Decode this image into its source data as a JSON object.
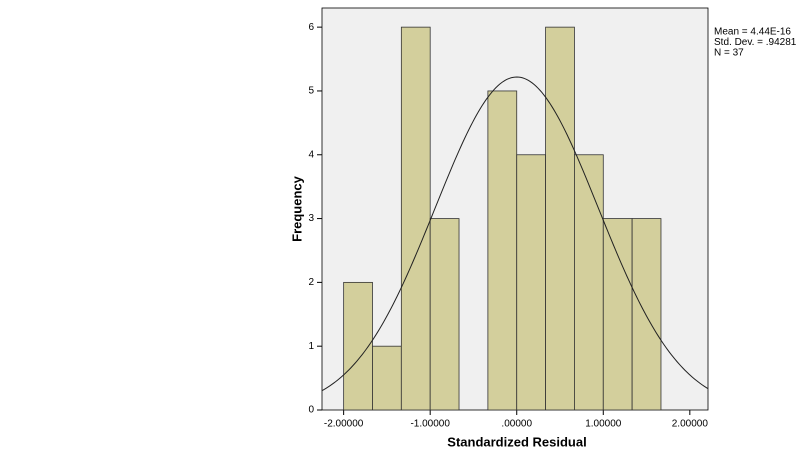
{
  "chart_data": {
    "type": "histogram",
    "x_label": "Standardized Residual",
    "y_label": "Frequency",
    "bins": [
      -2,
      -1.66667,
      -1.33333,
      -1,
      -0.66667,
      -0.33333,
      0,
      0.33333,
      0.66667,
      1,
      1.33333,
      1.66667
    ],
    "values": [
      2,
      1,
      6,
      3,
      0,
      5,
      4,
      6,
      4,
      3,
      3
    ],
    "color": "#d3cf9c",
    "xlim": [
      -2.25,
      2.21
    ],
    "ylim": [
      0,
      6.3
    ],
    "xticks": [
      {
        "value": -2,
        "label": "-2.00000"
      },
      {
        "value": -1,
        "label": "-1.00000"
      },
      {
        "value": 0,
        "label": ".00000"
      },
      {
        "value": 1,
        "label": "1.00000"
      },
      {
        "value": 2,
        "label": "2.00000"
      }
    ],
    "yticks": [
      0,
      1,
      2,
      3,
      4,
      5,
      6
    ],
    "stats": [
      {
        "label": "Mean = 4.44E-16",
        "value": 4.44e-16
      },
      {
        "label": "Std. Dev. = .94281",
        "value": 0.94281
      },
      {
        "label": "N = 37",
        "value": 37
      }
    ]
  }
}
